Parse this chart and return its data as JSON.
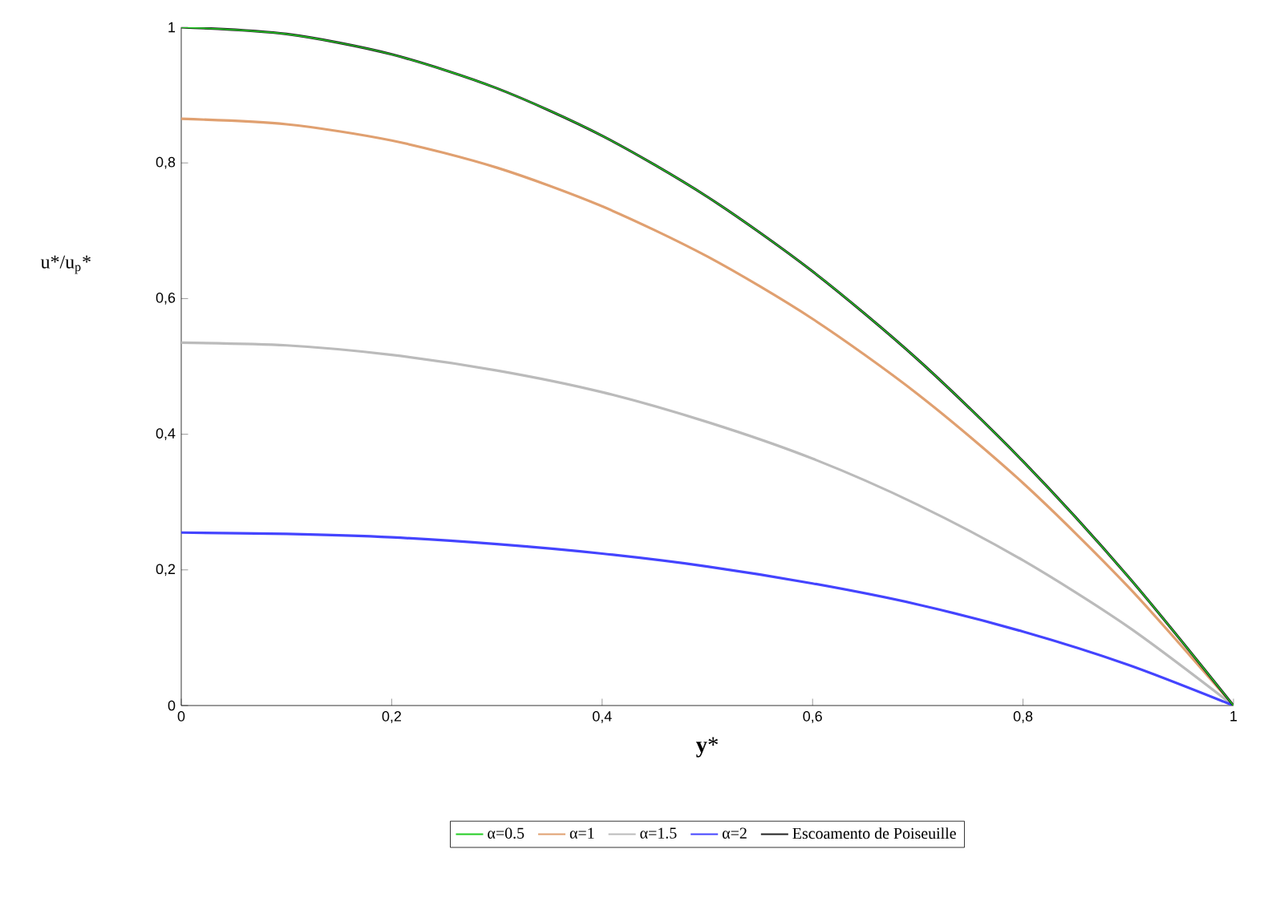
{
  "chart_data": {
    "type": "line",
    "xlabel": "**y***",
    "ylabel": "u*/u$_{p}$*",
    "x": [
      0,
      0.1,
      0.2,
      0.3,
      0.4,
      0.5,
      0.6,
      0.7,
      0.8,
      0.9,
      1
    ],
    "series": [
      {
        "name": "α=0.5",
        "color": "#22cc22",
        "values": [
          1,
          0.99,
          0.96,
          0.91,
          0.84,
          0.75,
          0.64,
          0.51,
          0.36,
          0.19,
          0
        ]
      },
      {
        "name": "α=1",
        "color": "#e0a070",
        "values": [
          0.865,
          0.857,
          0.833,
          0.793,
          0.736,
          0.662,
          0.57,
          0.459,
          0.328,
          0.175,
          0
        ]
      },
      {
        "name": "α=1.5",
        "color": "#bbbbbb",
        "values": [
          0.535,
          0.531,
          0.517,
          0.494,
          0.462,
          0.418,
          0.364,
          0.296,
          0.214,
          0.116,
          0
        ]
      },
      {
        "name": "α=2",
        "color": "#4444ff",
        "values": [
          0.255,
          0.253,
          0.248,
          0.238,
          0.224,
          0.205,
          0.18,
          0.149,
          0.109,
          0.06,
          0
        ]
      },
      {
        "name": "Escoamento de Poiseuille",
        "color": "#222222",
        "values": [
          1,
          0.99,
          0.96,
          0.91,
          0.84,
          0.75,
          0.64,
          0.51,
          0.36,
          0.19,
          0
        ]
      }
    ],
    "xlim": [
      0,
      1
    ],
    "ylim": [
      0,
      1
    ],
    "xticks": [
      0,
      {
        "value": 0.2,
        "label": "0,2"
      },
      {
        "value": 0.4,
        "label": "0,4"
      },
      {
        "value": 0.6,
        "label": "0,6"
      },
      {
        "value": 0.8,
        "label": "0,8"
      },
      1
    ],
    "yticks": [
      0,
      {
        "value": 0.2,
        "label": "0,2"
      },
      {
        "value": 0.4,
        "label": "0,4"
      },
      {
        "value": 0.6,
        "label": "0,6"
      },
      {
        "value": 0.8,
        "label": "0,8"
      },
      1
    ],
    "legend": "bottom",
    "grid": false,
    "marker": "none",
    "line_style": "solid"
  }
}
